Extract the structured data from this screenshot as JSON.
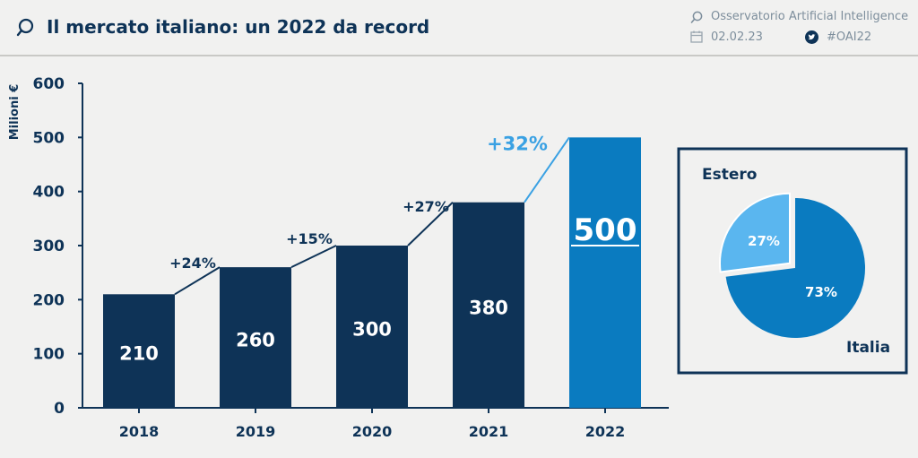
{
  "header": {
    "title": "Il mercato italiano: un 2022 da record",
    "org": "Osservatorio Artificial Intelligence",
    "date": "02.02.23",
    "hashtag": "#OAI22"
  },
  "colors": {
    "dark": "#0e3357",
    "highlight": "#0a7bc0",
    "light": "#5ab6ef",
    "text": "#0e3357",
    "growth_highlight": "#3aa1e3"
  },
  "chart_data": [
    {
      "type": "bar",
      "title": "Il mercato italiano: un 2022 da record",
      "ylabel": "Milioni €",
      "xlabel": "",
      "ylim": [
        0,
        600
      ],
      "yticks": [
        0,
        100,
        200,
        300,
        400,
        500,
        600
      ],
      "categories": [
        "2018",
        "2019",
        "2020",
        "2021",
        "2022"
      ],
      "values": [
        210,
        260,
        300,
        380,
        500
      ],
      "value_labels": [
        "210",
        "260",
        "300",
        "380",
        "500"
      ],
      "growth_labels": [
        "+24%",
        "+15%",
        "+27%",
        "+32%"
      ],
      "highlight_category": "2022",
      "grid": false
    },
    {
      "type": "pie",
      "labels": [
        "Italia",
        "Estero"
      ],
      "values": [
        73,
        27
      ],
      "value_labels": [
        "73%",
        "27%"
      ]
    }
  ]
}
